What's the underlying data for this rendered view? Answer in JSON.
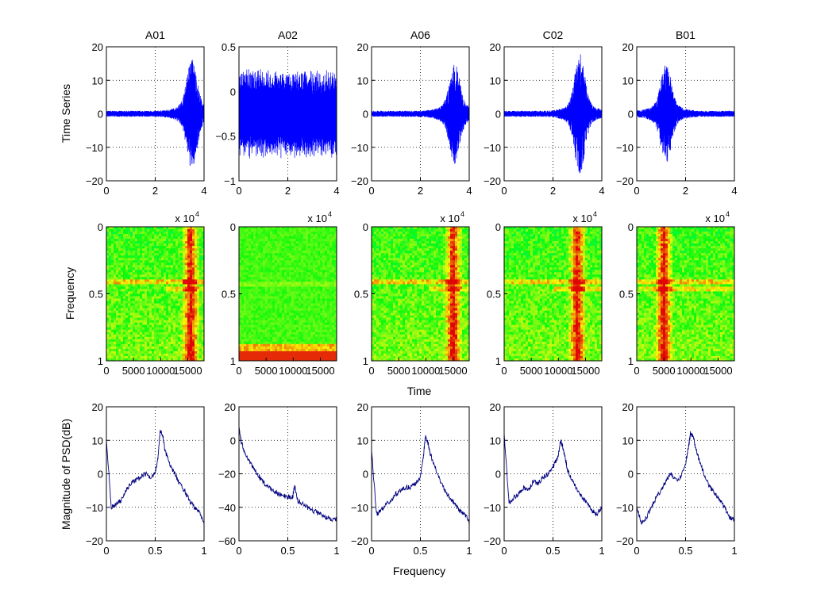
{
  "figure": {
    "xlabel_row2": "Time",
    "xlabel_row3": "Frequency",
    "ylabel_row1": "Time Series",
    "ylabel_row2": "Frequency",
    "ylabel_row3": "Magnitude of PSD(dB)",
    "exponent_label": "x 10",
    "exponent_power": "4",
    "colors": {
      "time_series": "#0000ff",
      "psd": "#00007f",
      "grid": "#000000"
    }
  },
  "chart_data": [
    {
      "type": "line",
      "row": 1,
      "title": "A01",
      "signal": "burst",
      "peak_time": 3.5,
      "amplitude": 13.5,
      "ylim": [
        -20,
        20
      ],
      "xlim": [
        0,
        4
      ],
      "xticks": [
        "0",
        "2",
        "4"
      ],
      "yticks": [
        "20",
        "10",
        "0",
        "-10",
        "-20"
      ],
      "grid": true
    },
    {
      "type": "line",
      "row": 1,
      "title": "A02",
      "signal": "periodic-spikes",
      "baseline": -0.25,
      "amplitude": 0.5,
      "ylim": [
        -1,
        0.5
      ],
      "xlim": [
        0,
        4
      ],
      "xticks": [
        "0",
        "2",
        "4"
      ],
      "yticks": [
        "0.5",
        "0",
        "-0.5",
        "-1"
      ],
      "grid": true
    },
    {
      "type": "line",
      "row": 1,
      "title": "A06",
      "signal": "burst",
      "peak_time": 3.4,
      "amplitude": 12,
      "ylim": [
        -20,
        20
      ],
      "xlim": [
        0,
        4
      ],
      "xticks": [
        "0",
        "2",
        "4"
      ],
      "yticks": [
        "20",
        "10",
        "0",
        "-10",
        "-20"
      ],
      "grid": true
    },
    {
      "type": "line",
      "row": 1,
      "title": "C02",
      "signal": "burst",
      "peak_time": 3.1,
      "amplitude": 15,
      "ylim": [
        -20,
        20
      ],
      "xlim": [
        0,
        4
      ],
      "xticks": [
        "0",
        "2",
        "4"
      ],
      "yticks": [
        "20",
        "10",
        "0",
        "-10",
        "-20"
      ],
      "grid": true
    },
    {
      "type": "line",
      "row": 1,
      "title": "B01",
      "signal": "burst",
      "peak_time": 1.2,
      "amplitude": 12,
      "ylim": [
        -20,
        20
      ],
      "xlim": [
        0,
        4
      ],
      "xticks": [
        "0",
        "2",
        "4"
      ],
      "yticks": [
        "20",
        "10",
        "0",
        "-10",
        "-20"
      ],
      "grid": true
    },
    {
      "type": "heatmap",
      "row": 2,
      "pattern": "burst",
      "event_time": 15500,
      "xlim": [
        0,
        18000
      ],
      "ylim": [
        0,
        1
      ],
      "xticks": [
        "0",
        "5000",
        "10000",
        "15000"
      ],
      "yticks": [
        "0",
        "0.5",
        "1"
      ]
    },
    {
      "type": "heatmap",
      "row": 2,
      "pattern": "low-band",
      "event_time": 0,
      "xlim": [
        0,
        18000
      ],
      "ylim": [
        0,
        1
      ],
      "xticks": [
        "0",
        "5000",
        "10000",
        "15000"
      ],
      "yticks": [
        "0",
        "0.5",
        "1"
      ]
    },
    {
      "type": "heatmap",
      "row": 2,
      "pattern": "burst",
      "event_time": 15000,
      "xlim": [
        0,
        18000
      ],
      "ylim": [
        0,
        1
      ],
      "xticks": [
        "0",
        "5000",
        "10000",
        "15000"
      ],
      "yticks": [
        "0",
        "0.5",
        "1"
      ]
    },
    {
      "type": "heatmap",
      "row": 2,
      "pattern": "burst",
      "event_time": 13500,
      "xlim": [
        0,
        18000
      ],
      "ylim": [
        0,
        1
      ],
      "xticks": [
        "0",
        "5000",
        "10000",
        "15000"
      ],
      "yticks": [
        "0",
        "0.5",
        "1"
      ]
    },
    {
      "type": "heatmap",
      "row": 2,
      "pattern": "burst",
      "event_time": 5000,
      "xlim": [
        0,
        18000
      ],
      "ylim": [
        0,
        1
      ],
      "xticks": [
        "0",
        "5000",
        "10000",
        "15000"
      ],
      "yticks": [
        "0",
        "0.5",
        "1"
      ]
    },
    {
      "type": "line",
      "row": 3,
      "xlim": [
        0,
        1
      ],
      "ylim": [
        -20,
        20
      ],
      "xticks": [
        "0",
        "0.5",
        "1"
      ],
      "yticks": [
        "20",
        "10",
        "0",
        "-10",
        "-20"
      ],
      "grid": true,
      "x": [
        0,
        0.05,
        0.1,
        0.15,
        0.2,
        0.25,
        0.3,
        0.35,
        0.4,
        0.45,
        0.5,
        0.53,
        0.55,
        0.58,
        0.6,
        0.65,
        0.7,
        0.75,
        0.8,
        0.85,
        0.9,
        0.95,
        1.0
      ],
      "y": [
        10,
        -10,
        -9,
        -8,
        -5,
        -3,
        -2,
        -1,
        0,
        -1,
        0,
        5,
        13,
        11,
        7,
        3,
        0,
        -3,
        -5,
        -8,
        -10,
        -11,
        -15
      ]
    },
    {
      "type": "line",
      "row": 3,
      "xlim": [
        0,
        1
      ],
      "ylim": [
        -60,
        20
      ],
      "xticks": [
        "0",
        "0.5",
        "1"
      ],
      "yticks": [
        "20",
        "0",
        "-20",
        "-40",
        "-60"
      ],
      "grid": true,
      "x": [
        0,
        0.02,
        0.05,
        0.1,
        0.15,
        0.2,
        0.25,
        0.3,
        0.35,
        0.4,
        0.45,
        0.5,
        0.55,
        0.57,
        0.6,
        0.65,
        0.7,
        0.75,
        0.8,
        0.85,
        0.9,
        0.95,
        1.0
      ],
      "y": [
        8,
        0,
        -6,
        -12,
        -17,
        -21,
        -25,
        -28,
        -30,
        -32,
        -33,
        -34,
        -34,
        -27,
        -36,
        -38,
        -40,
        -42,
        -43,
        -45,
        -46,
        -47,
        -47
      ]
    },
    {
      "type": "line",
      "row": 3,
      "xlim": [
        0,
        1
      ],
      "ylim": [
        -20,
        20
      ],
      "xticks": [
        "0",
        "0.5",
        "1"
      ],
      "yticks": [
        "20",
        "10",
        "0",
        "-10",
        "-20"
      ],
      "grid": true,
      "x": [
        0,
        0.05,
        0.1,
        0.15,
        0.2,
        0.25,
        0.3,
        0.35,
        0.4,
        0.45,
        0.5,
        0.53,
        0.55,
        0.58,
        0.6,
        0.65,
        0.7,
        0.75,
        0.8,
        0.85,
        0.9,
        0.95,
        1.0
      ],
      "y": [
        7,
        -12,
        -11,
        -9,
        -8,
        -6,
        -5,
        -4,
        -4,
        -3,
        -1,
        5,
        11,
        9,
        6,
        2,
        -2,
        -5,
        -7,
        -9,
        -11,
        -12,
        -14
      ]
    },
    {
      "type": "line",
      "row": 3,
      "xlim": [
        0,
        1
      ],
      "ylim": [
        -20,
        20
      ],
      "xticks": [
        "0",
        "0.5",
        "1"
      ],
      "yticks": [
        "20",
        "10",
        "0",
        "-10",
        "-20"
      ],
      "grid": true,
      "x": [
        0,
        0.05,
        0.1,
        0.15,
        0.2,
        0.25,
        0.3,
        0.35,
        0.4,
        0.45,
        0.5,
        0.55,
        0.58,
        0.6,
        0.63,
        0.65,
        0.7,
        0.75,
        0.8,
        0.85,
        0.9,
        0.95,
        1.0
      ],
      "y": [
        12,
        -9,
        -7,
        -6,
        -4,
        -5,
        -2,
        -3,
        -1,
        0,
        2,
        5,
        10,
        8,
        4,
        1,
        -2,
        -5,
        -7,
        -9,
        -11,
        -12,
        -10
      ]
    },
    {
      "type": "line",
      "row": 3,
      "xlim": [
        0,
        1
      ],
      "ylim": [
        -20,
        20
      ],
      "xticks": [
        "0",
        "0.5",
        "1"
      ],
      "yticks": [
        "20",
        "10",
        "0",
        "-10",
        "-20"
      ],
      "grid": true,
      "x": [
        0,
        0.05,
        0.1,
        0.15,
        0.2,
        0.25,
        0.3,
        0.35,
        0.4,
        0.45,
        0.5,
        0.53,
        0.55,
        0.58,
        0.6,
        0.65,
        0.7,
        0.75,
        0.8,
        0.85,
        0.9,
        0.95,
        1.0
      ],
      "y": [
        -10,
        -15,
        -13,
        -10,
        -7,
        -5,
        -2,
        0,
        -2,
        -1,
        3,
        8,
        12,
        11,
        8,
        3,
        -1,
        -4,
        -6,
        -8,
        -10,
        -13,
        -14
      ]
    }
  ]
}
